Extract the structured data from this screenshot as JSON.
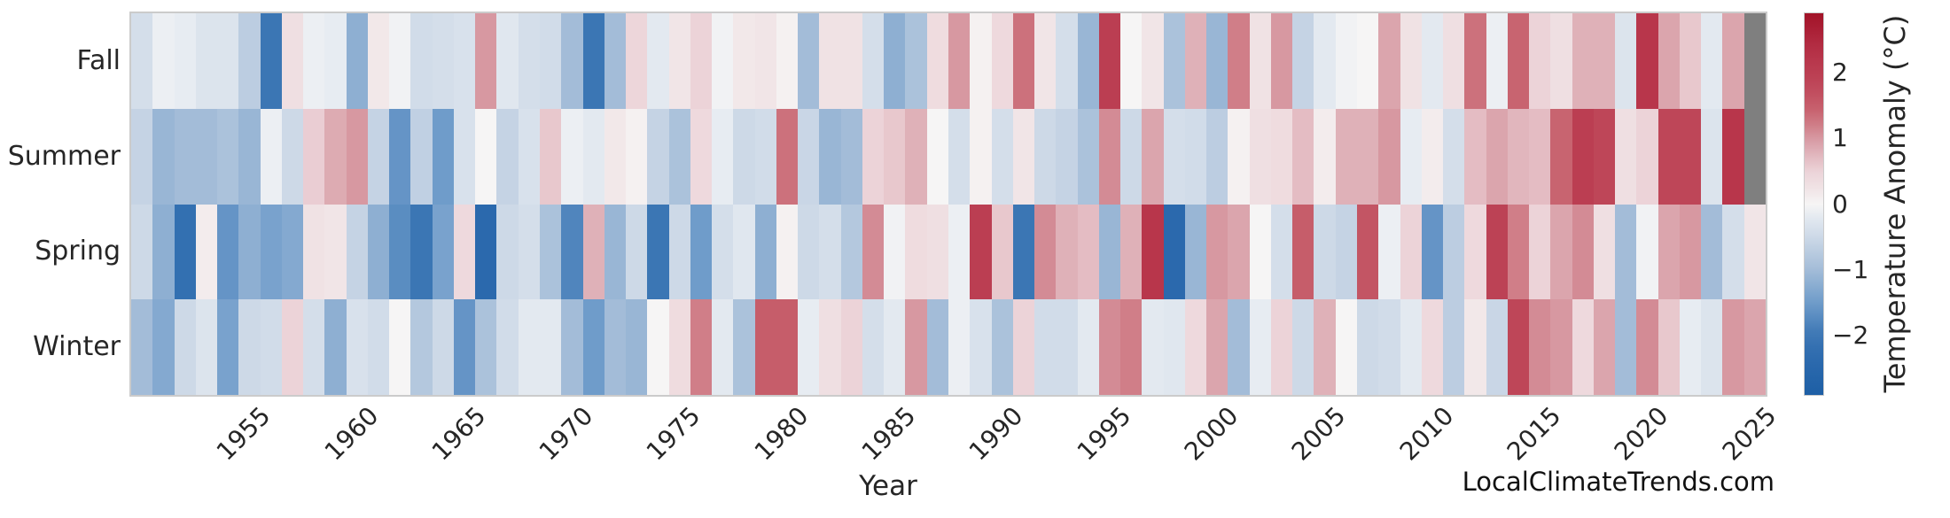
{
  "figure": {
    "watermark": "LocalClimateTrends.com",
    "text_color": "#262626",
    "frame_color": "#cbcbcb",
    "missing_color": "#7f7f7f",
    "colormap_stops": [
      [
        -2.9,
        "#1e5fa5"
      ],
      [
        -2.4,
        "#2b69ad"
      ],
      [
        -2.0,
        "#3b76b4"
      ],
      [
        -1.5,
        "#6f9cca"
      ],
      [
        -1.0,
        "#a3bcd8"
      ],
      [
        -0.5,
        "#cdd9e7"
      ],
      [
        -0.15,
        "#e7ecf2"
      ],
      [
        0.0,
        "#f6f5f5"
      ],
      [
        0.15,
        "#f2e8e9"
      ],
      [
        0.5,
        "#ecd3d8"
      ],
      [
        0.9,
        "#dba5ad"
      ],
      [
        1.4,
        "#c86470"
      ],
      [
        1.8,
        "#be4658"
      ],
      [
        2.3,
        "#b63248"
      ],
      [
        2.9,
        "#a21328"
      ]
    ]
  },
  "chart_data": {
    "type": "heatmap",
    "title": "",
    "xlabel": "Year",
    "ylabel": "",
    "colorbar_label": "Temperature Anomaly (°C)",
    "colorbar_tick_values": [
      2,
      1,
      0,
      -1,
      -2
    ],
    "colorbar_tick_labels": [
      "2",
      "1",
      "0",
      "−1",
      "−2"
    ],
    "vmin": -2.9,
    "vmax": 2.9,
    "legend_position": "right-colorbar",
    "grid": false,
    "rows": [
      "Fall",
      "Summer",
      "Spring",
      "Winter"
    ],
    "x": [
      1950,
      1951,
      1952,
      1953,
      1954,
      1955,
      1956,
      1957,
      1958,
      1959,
      1960,
      1961,
      1962,
      1963,
      1964,
      1965,
      1966,
      1967,
      1968,
      1969,
      1970,
      1971,
      1972,
      1973,
      1974,
      1975,
      1976,
      1977,
      1978,
      1979,
      1980,
      1981,
      1982,
      1983,
      1984,
      1985,
      1986,
      1987,
      1988,
      1989,
      1990,
      1991,
      1992,
      1993,
      1994,
      1995,
      1996,
      1997,
      1998,
      1999,
      2000,
      2001,
      2002,
      2003,
      2004,
      2005,
      2006,
      2007,
      2008,
      2009,
      2010,
      2011,
      2012,
      2013,
      2014,
      2015,
      2016,
      2017,
      2018,
      2019,
      2020,
      2021,
      2022,
      2023,
      2024,
      2025
    ],
    "x_ticks": [
      1955,
      1960,
      1965,
      1970,
      1975,
      1980,
      1985,
      1990,
      1995,
      2000,
      2005,
      2010,
      2015,
      2020,
      2025
    ],
    "series": [
      {
        "name": "Fall",
        "values": [
          -0.4,
          -0.1,
          -0.15,
          -0.3,
          -0.3,
          -0.7,
          -2.0,
          0.3,
          -0.1,
          -0.15,
          -1.2,
          0.15,
          -0.05,
          -0.45,
          -0.4,
          -0.35,
          1.0,
          -0.25,
          -0.4,
          -0.45,
          -1.0,
          -2.0,
          -1.0,
          0.45,
          -0.2,
          0.2,
          0.5,
          -0.05,
          0.15,
          0.2,
          0.05,
          -1.0,
          0.25,
          0.25,
          -0.4,
          -1.2,
          -0.9,
          0.35,
          1.0,
          0.05,
          0.4,
          1.3,
          0.2,
          -0.4,
          -1.1,
          2.0,
          0.0,
          0.2,
          -0.9,
          0.8,
          -1.1,
          1.2,
          0.25,
          1.0,
          -0.6,
          -0.2,
          -0.05,
          0.0,
          0.9,
          0.25,
          -0.2,
          0.3,
          1.3,
          -0.1,
          1.4,
          0.5,
          0.3,
          0.8,
          0.8,
          -0.3,
          2.2,
          0.9,
          0.6,
          -0.2,
          0.9,
          null
        ]
      },
      {
        "name": "Summer",
        "values": [
          -0.6,
          -1.1,
          -1.0,
          -1.0,
          -0.9,
          -1.1,
          -0.1,
          -0.5,
          0.55,
          0.85,
          1.0,
          -0.6,
          -1.6,
          -0.65,
          -1.5,
          -0.35,
          0.0,
          -0.6,
          -0.35,
          0.6,
          -0.1,
          -0.2,
          0.15,
          0.05,
          -0.6,
          -0.9,
          0.4,
          -0.15,
          -0.5,
          -0.45,
          1.3,
          -0.55,
          -1.1,
          -1.0,
          0.5,
          0.6,
          0.8,
          0.0,
          -0.4,
          0.05,
          -0.4,
          0.2,
          -0.5,
          -0.6,
          -0.9,
          1.1,
          -0.5,
          0.9,
          -0.4,
          -0.45,
          -0.7,
          0.05,
          0.3,
          0.35,
          0.7,
          0.1,
          0.8,
          0.8,
          1.0,
          -0.15,
          0.1,
          -0.4,
          0.7,
          0.9,
          0.75,
          0.7,
          1.4,
          2.0,
          1.8,
          0.3,
          0.5,
          1.8,
          1.8,
          -0.3,
          2.2,
          null
        ]
      },
      {
        "name": "Spring",
        "values": [
          -0.5,
          -1.2,
          -2.2,
          0.1,
          -1.6,
          -1.2,
          -1.4,
          -1.3,
          0.25,
          0.2,
          -0.6,
          -1.2,
          -1.7,
          -2.0,
          -1.4,
          0.4,
          -2.4,
          -0.5,
          -0.4,
          -0.9,
          -1.8,
          0.8,
          -1.1,
          -0.5,
          -2.0,
          -0.5,
          -1.5,
          -0.4,
          -0.25,
          -1.2,
          0.05,
          -0.5,
          -0.4,
          -0.8,
          1.1,
          -0.05,
          0.35,
          0.3,
          -0.1,
          2.0,
          0.6,
          -2.0,
          1.1,
          0.8,
          0.7,
          -1.1,
          0.8,
          2.2,
          -2.4,
          -1.1,
          1.0,
          0.9,
          0.0,
          -0.4,
          1.5,
          -0.5,
          -0.6,
          1.6,
          -0.1,
          0.5,
          -1.6,
          -0.7,
          0.4,
          1.9,
          1.2,
          0.5,
          0.9,
          1.1,
          0.3,
          -1.0,
          -0.05,
          0.9,
          1.0,
          -1.0,
          -0.4,
          0.2
        ]
      },
      {
        "name": "Winter",
        "values": [
          -1.0,
          -1.3,
          -0.5,
          -0.3,
          -1.4,
          -0.5,
          -0.45,
          0.5,
          -0.4,
          -1.2,
          -0.35,
          -0.45,
          0.0,
          -0.8,
          -0.5,
          -1.6,
          -0.9,
          -0.45,
          -0.2,
          -0.2,
          -1.0,
          -1.5,
          -1.0,
          -1.1,
          0.0,
          0.35,
          1.2,
          -0.2,
          -0.9,
          1.5,
          1.5,
          -0.15,
          0.3,
          0.5,
          -0.4,
          -0.2,
          1.0,
          -1.0,
          -0.1,
          -0.35,
          -0.9,
          0.5,
          -0.45,
          -0.45,
          -0.2,
          1.1,
          1.2,
          -0.2,
          -0.25,
          0.4,
          0.9,
          -1.0,
          -0.15,
          0.5,
          -0.5,
          0.8,
          0.0,
          -0.5,
          -0.45,
          -0.2,
          0.4,
          -0.7,
          0.15,
          -0.55,
          1.8,
          1.1,
          1.0,
          0.4,
          0.9,
          -1.0,
          1.1,
          0.6,
          -0.15,
          -0.3,
          1.0,
          0.9
        ]
      }
    ]
  }
}
